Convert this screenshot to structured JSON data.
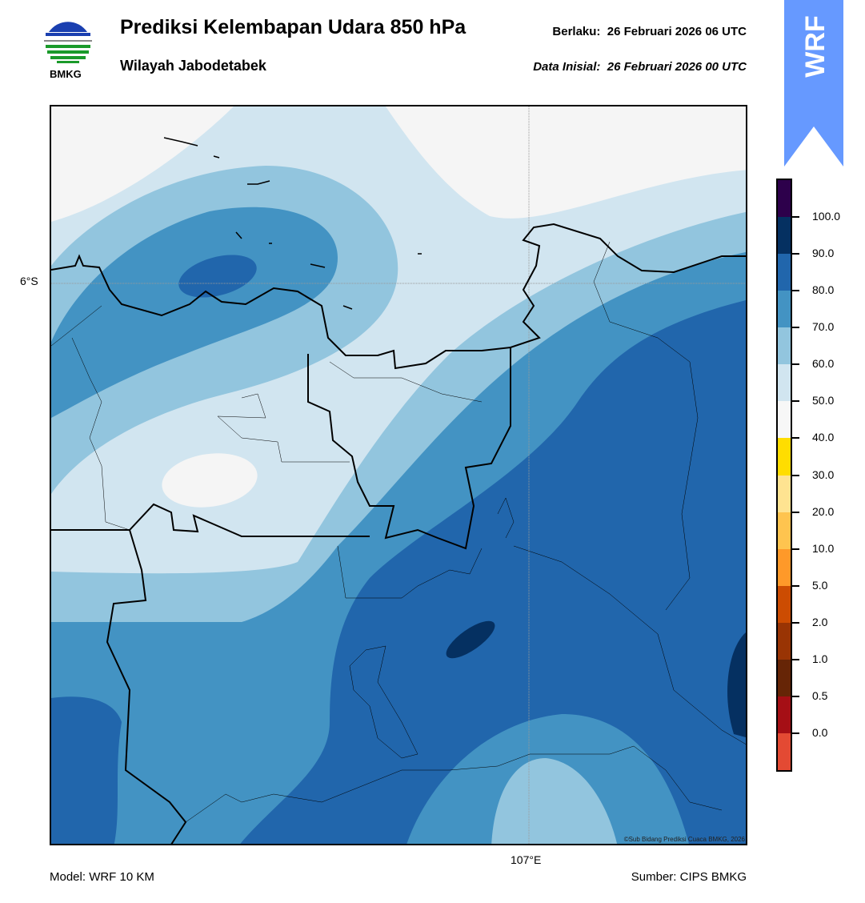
{
  "header": {
    "logo_text": "BMKG",
    "title": "Prediksi Kelembapan Udara 850 hPa",
    "subtitle": "Wilayah Jabodetabek",
    "valid": "Berlaku:  26 Februari 2026 06 UTC",
    "initial": "Data Inisial:  26 Februari 2026 00 UTC",
    "badge": "WRF"
  },
  "map": {
    "lat_label": "6°S",
    "lon_label": "107°E",
    "credit": "©Sub Bidang Prediksi Cuaca BMKG, 2026"
  },
  "colorbar": {
    "colors": [
      "#2d004b",
      "#053061",
      "#2166ac",
      "#4393c3",
      "#92c5de",
      "#d1e5f0",
      "#f7f7f7",
      "#ffdd00",
      "#fee391",
      "#fec44f",
      "#fe9929",
      "#cc4c02",
      "#993404",
      "#662506",
      "#a50f15",
      "#e34a33"
    ],
    "labels": [
      "100.0",
      "90.0",
      "80.0",
      "70.0",
      "60.0",
      "50.0",
      "40.0",
      "30.0",
      "20.0",
      "10.0",
      "5.0",
      "2.0",
      "1.0",
      "0.5",
      "0.0"
    ]
  },
  "footer": {
    "model": "Model: WRF 10 KM",
    "source": "Sumber: CIPS BMKG"
  }
}
